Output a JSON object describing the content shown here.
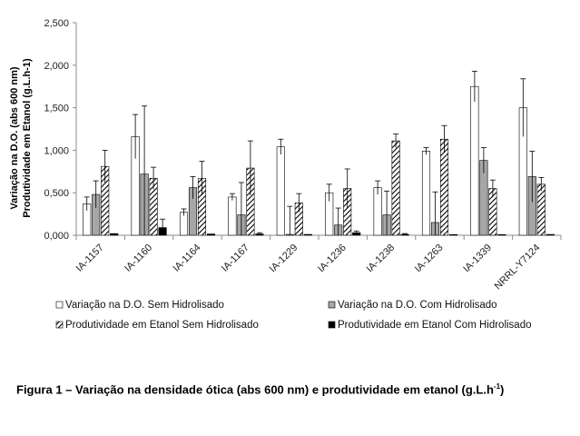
{
  "chart_data": {
    "type": "bar",
    "ylabel_line1": "Variação na D.O. (abs 600 nm)",
    "ylabel_line2": "Produtividade em Etanol (g.L.h-1)",
    "ylim": [
      0,
      2.5
    ],
    "yticks": [
      "0,000",
      "0,500",
      "1,000",
      "1,500",
      "2,000",
      "2,500"
    ],
    "ytick_values": [
      0,
      0.5,
      1.0,
      1.5,
      2.0,
      2.5
    ],
    "categories": [
      "IA-1157",
      "IA-1160",
      "IA-1164",
      "IA-1167",
      "IA-1229",
      "IA-1236",
      "IA-1238",
      "IA-1263",
      "IA-1339",
      "NRRL-Y7124"
    ],
    "legend_position": "bottom",
    "grid": false,
    "series": [
      {
        "name": "Variação na D.O. Sem Hidrolisado",
        "fill": "#ffffff",
        "pattern": "none",
        "values": [
          0.37,
          1.16,
          0.27,
          0.45,
          1.04,
          0.5,
          0.56,
          0.99,
          1.75,
          1.5
        ],
        "errors": [
          0.08,
          0.26,
          0.04,
          0.04,
          0.09,
          0.1,
          0.08,
          0.04,
          0.18,
          0.34
        ]
      },
      {
        "name": "Variação na D.O. Com Hidrolisado",
        "fill": "#a6a6a6",
        "pattern": "none",
        "values": [
          0.48,
          0.72,
          0.56,
          0.24,
          0.01,
          0.12,
          0.24,
          0.15,
          0.88,
          0.69
        ],
        "errors": [
          0.16,
          0.8,
          0.13,
          0.38,
          0.33,
          0.2,
          0.28,
          0.36,
          0.15,
          0.3
        ]
      },
      {
        "name": "Produtividade em Etanol Sem Hidrolisado",
        "fill": "#ffffff",
        "pattern": "hatch",
        "values": [
          0.81,
          0.67,
          0.67,
          0.79,
          0.38,
          0.55,
          1.11,
          1.13,
          0.55,
          0.6
        ],
        "errors": [
          0.19,
          0.13,
          0.2,
          0.32,
          0.11,
          0.23,
          0.08,
          0.16,
          0.1,
          0.08
        ]
      },
      {
        "name": "Produtividade em Etanol Com Hidrolisado",
        "fill": "#000000",
        "pattern": "none",
        "values": [
          0.02,
          0.09,
          0.015,
          0.015,
          0.01,
          0.03,
          0.01,
          0.005,
          0.005,
          0.01
        ],
        "errors": [
          0.0,
          0.1,
          0.0,
          0.015,
          0.0,
          0.02,
          0.01,
          0.0,
          0.0,
          0.0
        ]
      }
    ]
  },
  "caption": {
    "text": "Figura 1 – Variação na densidade ótica (abs 600 nm) e produtividade em etanol (g.L.h",
    "superscript": "-1",
    "closing": ")"
  }
}
